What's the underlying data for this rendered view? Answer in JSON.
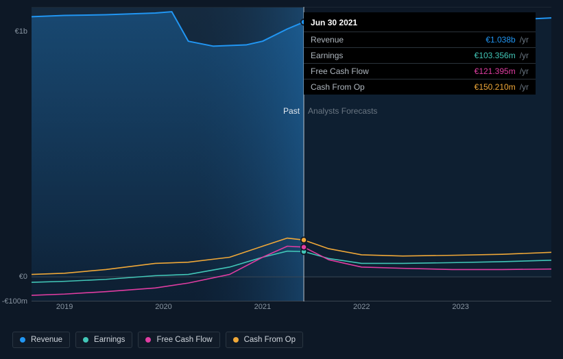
{
  "background_color": "#0d1826",
  "chart": {
    "type": "line-area",
    "x_domain_months": {
      "start": "2018-09",
      "end": "2023-12"
    },
    "split_month": "2021-06",
    "y_axis": {
      "min": -100000000,
      "max": 1100000000,
      "ticks": [
        {
          "value": 1000000000,
          "label": "€1b"
        },
        {
          "value": 0,
          "label": "€0"
        },
        {
          "value": -100000000,
          "label": "-€100m"
        }
      ]
    },
    "x_ticks": [
      "2019",
      "2020",
      "2021",
      "2022",
      "2023"
    ],
    "regions": {
      "past_label": "Past",
      "forecast_label": "Analysts Forecasts",
      "past_bg_gradient": [
        "#152a3f",
        "#0d1f33"
      ],
      "highlight_gradient": [
        "rgba(20,50,80,0)",
        "rgba(30,90,140,0.55)"
      ]
    },
    "colors": {
      "revenue": "#2196f3",
      "earnings": "#42c7b8",
      "free_cash_flow": "#e03da2",
      "cash_from_op": "#f0a838",
      "axis_text": "#8a96a3",
      "grid_line": "#1b2733",
      "baseline": "#3a4652",
      "cursor_line": "#ffffff"
    },
    "cursor": {
      "month": "2021-06",
      "markers": [
        {
          "series": "revenue",
          "value": 1038000000
        },
        {
          "series": "cash_from_op",
          "value": 150210000
        },
        {
          "series": "earnings",
          "value": 103356000
        },
        {
          "series": "free_cash_flow",
          "value": 121395000
        }
      ]
    },
    "series": [
      {
        "id": "revenue",
        "label": "Revenue",
        "color": "#2196f3",
        "fill": true,
        "width": 2,
        "points": [
          [
            "2018-09",
            1060000000
          ],
          [
            "2019-01",
            1065000000
          ],
          [
            "2019-06",
            1068000000
          ],
          [
            "2019-12",
            1075000000
          ],
          [
            "2020-02",
            1080000000
          ],
          [
            "2020-04",
            960000000
          ],
          [
            "2020-07",
            940000000
          ],
          [
            "2020-11",
            945000000
          ],
          [
            "2021-01",
            960000000
          ],
          [
            "2021-04",
            1010000000
          ],
          [
            "2021-06",
            1038000000
          ],
          [
            "2021-09",
            960000000
          ],
          [
            "2021-12",
            930000000
          ],
          [
            "2022-03",
            935000000
          ],
          [
            "2022-07",
            980000000
          ],
          [
            "2022-11",
            1055000000
          ],
          [
            "2023-02",
            1075000000
          ],
          [
            "2023-06",
            1065000000
          ],
          [
            "2023-09",
            1050000000
          ],
          [
            "2023-12",
            1055000000
          ]
        ]
      },
      {
        "id": "earnings",
        "label": "Earnings",
        "color": "#42c7b8",
        "fill": false,
        "width": 1.6,
        "points": [
          [
            "2018-09",
            -22000000
          ],
          [
            "2019-01",
            -18000000
          ],
          [
            "2019-06",
            -10000000
          ],
          [
            "2019-12",
            5000000
          ],
          [
            "2020-04",
            10000000
          ],
          [
            "2020-09",
            40000000
          ],
          [
            "2021-01",
            80000000
          ],
          [
            "2021-04",
            105000000
          ],
          [
            "2021-06",
            103356000
          ],
          [
            "2021-09",
            75000000
          ],
          [
            "2022-01",
            55000000
          ],
          [
            "2022-06",
            55000000
          ],
          [
            "2022-12",
            58000000
          ],
          [
            "2023-06",
            62000000
          ],
          [
            "2023-12",
            68000000
          ]
        ]
      },
      {
        "id": "free_cash_flow",
        "label": "Free Cash Flow",
        "color": "#e03da2",
        "fill": false,
        "width": 1.6,
        "points": [
          [
            "2018-09",
            -75000000
          ],
          [
            "2019-01",
            -70000000
          ],
          [
            "2019-06",
            -60000000
          ],
          [
            "2019-12",
            -45000000
          ],
          [
            "2020-04",
            -25000000
          ],
          [
            "2020-09",
            10000000
          ],
          [
            "2021-01",
            80000000
          ],
          [
            "2021-04",
            125000000
          ],
          [
            "2021-06",
            121395000
          ],
          [
            "2021-09",
            70000000
          ],
          [
            "2022-01",
            40000000
          ],
          [
            "2022-06",
            35000000
          ],
          [
            "2022-12",
            30000000
          ],
          [
            "2023-06",
            30000000
          ],
          [
            "2023-12",
            32000000
          ]
        ]
      },
      {
        "id": "cash_from_op",
        "label": "Cash From Op",
        "color": "#f0a838",
        "fill": false,
        "width": 1.6,
        "points": [
          [
            "2018-09",
            10000000
          ],
          [
            "2019-01",
            15000000
          ],
          [
            "2019-06",
            30000000
          ],
          [
            "2019-12",
            55000000
          ],
          [
            "2020-04",
            60000000
          ],
          [
            "2020-09",
            80000000
          ],
          [
            "2021-01",
            125000000
          ],
          [
            "2021-04",
            158000000
          ],
          [
            "2021-06",
            150210000
          ],
          [
            "2021-09",
            115000000
          ],
          [
            "2022-01",
            90000000
          ],
          [
            "2022-06",
            85000000
          ],
          [
            "2022-12",
            88000000
          ],
          [
            "2023-06",
            92000000
          ],
          [
            "2023-12",
            100000000
          ]
        ]
      }
    ]
  },
  "tooltip": {
    "header": "Jun 30 2021",
    "rows": [
      {
        "label": "Revenue",
        "value": "€1.038b",
        "color": "#2196f3",
        "unit": "/yr"
      },
      {
        "label": "Earnings",
        "value": "€103.356m",
        "color": "#42c7b8",
        "unit": "/yr"
      },
      {
        "label": "Free Cash Flow",
        "value": "€121.395m",
        "color": "#e03da2",
        "unit": "/yr"
      },
      {
        "label": "Cash From Op",
        "value": "€150.210m",
        "color": "#f0a838",
        "unit": "/yr"
      }
    ]
  },
  "legend": [
    {
      "id": "revenue",
      "label": "Revenue",
      "color": "#2196f3"
    },
    {
      "id": "earnings",
      "label": "Earnings",
      "color": "#42c7b8"
    },
    {
      "id": "free_cash_flow",
      "label": "Free Cash Flow",
      "color": "#e03da2"
    },
    {
      "id": "cash_from_op",
      "label": "Cash From Op",
      "color": "#f0a838"
    }
  ]
}
